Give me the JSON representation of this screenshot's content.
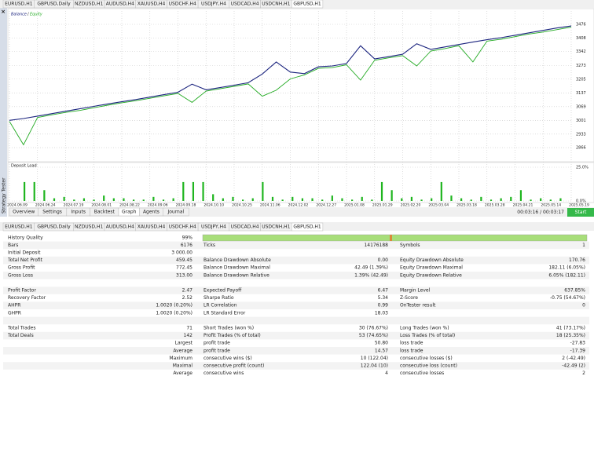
{
  "tabs": {
    "items": [
      "EURUSD,H1",
      "GBPUSD,Daily",
      "NZDUSD,H1",
      "AUDUSD,H4",
      "XAUUSD,H4",
      "USDCHF,H4",
      "USDJPY,H4",
      "USDCAD,H4",
      "USDCNH,H1",
      "GBPUSD,H1"
    ],
    "active": 9
  },
  "sidebar": {
    "close": "×",
    "title": "Strategy Tester"
  },
  "graph": {
    "legend": [
      "Balance",
      "Equity"
    ],
    "legend_separator": "/",
    "ylim": [
      2804,
      3542
    ],
    "yticks": [
      3476,
      3408,
      3342,
      3273,
      3205,
      3137,
      3069,
      3001,
      2933,
      2866
    ],
    "balance": [
      3001,
      3010,
      3022,
      3034,
      3046,
      3058,
      3070,
      3082,
      3093,
      3104,
      3116,
      3128,
      3140,
      3180,
      3152,
      3163,
      3175,
      3187,
      3230,
      3290,
      3240,
      3232,
      3266,
      3270,
      3282,
      3370,
      3305,
      3316,
      3328,
      3380,
      3352,
      3364,
      3376,
      3388,
      3400,
      3410,
      3422,
      3434,
      3446,
      3458,
      3468
    ],
    "equity": [
      2996,
      2880,
      3015,
      3028,
      3040,
      3050,
      3063,
      3076,
      3088,
      3098,
      3110,
      3122,
      3134,
      3090,
      3146,
      3157,
      3169,
      3181,
      3120,
      3150,
      3206,
      3226,
      3258,
      3262,
      3276,
      3200,
      3298,
      3310,
      3321,
      3270,
      3344,
      3356,
      3370,
      3290,
      3393,
      3402,
      3415,
      3428,
      3438,
      3450,
      3462
    ],
    "deposit_title": "Deposit Load",
    "deposit_ylim": [
      0,
      25
    ],
    "deposit_yticks": [
      {
        "value": 25,
        "label": "25.0%"
      },
      {
        "value": 0,
        "label": "0.0%"
      }
    ],
    "deposit_load": [
      14,
      14,
      8,
      2,
      3,
      1,
      2,
      1,
      4,
      2,
      2,
      1,
      1,
      3,
      1,
      2,
      14,
      14,
      14,
      5,
      2,
      3,
      1,
      2,
      14,
      3,
      1,
      3,
      2,
      2,
      1,
      4,
      2,
      1,
      3,
      1,
      14,
      8,
      2,
      3,
      1,
      2,
      14,
      4,
      2,
      1,
      3,
      1,
      2,
      3,
      8,
      1,
      2,
      1,
      2
    ],
    "dates": [
      "2024.06.09",
      "2024.06.24",
      "2024.07.19",
      "2024.08.01",
      "2024.08.22",
      "2024.09.06",
      "2024.09.18",
      "2024.10.10",
      "2024.10.25",
      "2024.11.06",
      "2024.12.02",
      "2024.12.27",
      "2025.01.08",
      "2025.01.29",
      "2025.02.20",
      "2025.03.04",
      "2025.03.18",
      "2025.03.28",
      "2025.04.21",
      "2025.05.14",
      "2025.05.19"
    ]
  },
  "bottom_tabs": {
    "items": [
      "Overview",
      "Settings",
      "Inputs",
      "Backtest",
      "Graph",
      "Agents",
      "Journal"
    ],
    "active": 4
  },
  "timer": "00:03:16 / 00:03:17",
  "start_button": "Start",
  "report": {
    "rows": [
      [
        [
          "History Quality",
          "99%"
        ],
        null,
        null
      ],
      [
        [
          "Bars",
          "6176"
        ],
        [
          "Ticks",
          "14176188"
        ],
        [
          "Symbols",
          "1"
        ]
      ],
      [
        [
          "Initial Deposit",
          "3 000.00"
        ],
        null,
        null
      ],
      [
        [
          "Total Net Profit",
          "459.45"
        ],
        [
          "Balance Drawdown Absolute",
          "0.00"
        ],
        [
          "Equity Drawdown Absolute",
          "170.76"
        ]
      ],
      [
        [
          "Gross Profit",
          "772.45"
        ],
        [
          "Balance Drawdown Maximal",
          "42.49 (1.39%)"
        ],
        [
          "Equity Drawdown Maximal",
          "182.11 (6.05%)"
        ]
      ],
      [
        [
          "Gross Loss",
          "313.00"
        ],
        [
          "Balance Drawdown Relative",
          "1.39% (42.49)"
        ],
        [
          "Equity Drawdown Relative",
          "6.05% (182.11)"
        ]
      ],
      null,
      [
        [
          "Profit Factor",
          "2.47"
        ],
        [
          "Expected Payoff",
          "6.47"
        ],
        [
          "Margin Level",
          "637.85%"
        ]
      ],
      [
        [
          "Recovery Factor",
          "2.52"
        ],
        [
          "Sharpe Ratio",
          "5.34"
        ],
        [
          "Z-Score",
          "-0.75 (54.67%)"
        ]
      ],
      [
        [
          "AHPR",
          "1.0020 (0.20%)"
        ],
        [
          "LR Correlation",
          "0.99"
        ],
        [
          "OnTester result",
          "0"
        ]
      ],
      [
        [
          "GHPR",
          "1.0020 (0.20%)"
        ],
        [
          "LR Standard Error",
          "18.03"
        ],
        null
      ],
      null,
      [
        [
          "Total Trades",
          "71"
        ],
        [
          "Short Trades (won %)",
          "30 (76.67%)"
        ],
        [
          "Long Trades (won %)",
          "41 (73.17%)"
        ]
      ],
      [
        [
          "Total Deals",
          "142"
        ],
        [
          "Profit Trades (% of total)",
          "53 (74.65%)"
        ],
        [
          "Loss Trades (% of total)",
          "18 (25.35%)"
        ]
      ],
      [
        [
          "Largest"
        ],
        [
          "profit trade",
          "50.80"
        ],
        [
          "loss trade",
          "-27.83"
        ]
      ],
      [
        [
          "Average"
        ],
        [
          "profit trade",
          "14.57"
        ],
        [
          "loss trade",
          "-17.39"
        ]
      ],
      [
        [
          "Maximum"
        ],
        [
          "consecutive wins ($)",
          "10 (122.04)"
        ],
        [
          "consecutive losses ($)",
          "2 (-42.49)"
        ]
      ],
      [
        [
          "Maximal"
        ],
        [
          "consecutive profit (count)",
          "122.04 (10)"
        ],
        [
          "consecutive loss (count)",
          "-42.49 (2)"
        ]
      ],
      [
        [
          "Average"
        ],
        [
          "consecutive wins",
          "4"
        ],
        [
          "consecutive losses",
          "2"
        ]
      ]
    ]
  }
}
